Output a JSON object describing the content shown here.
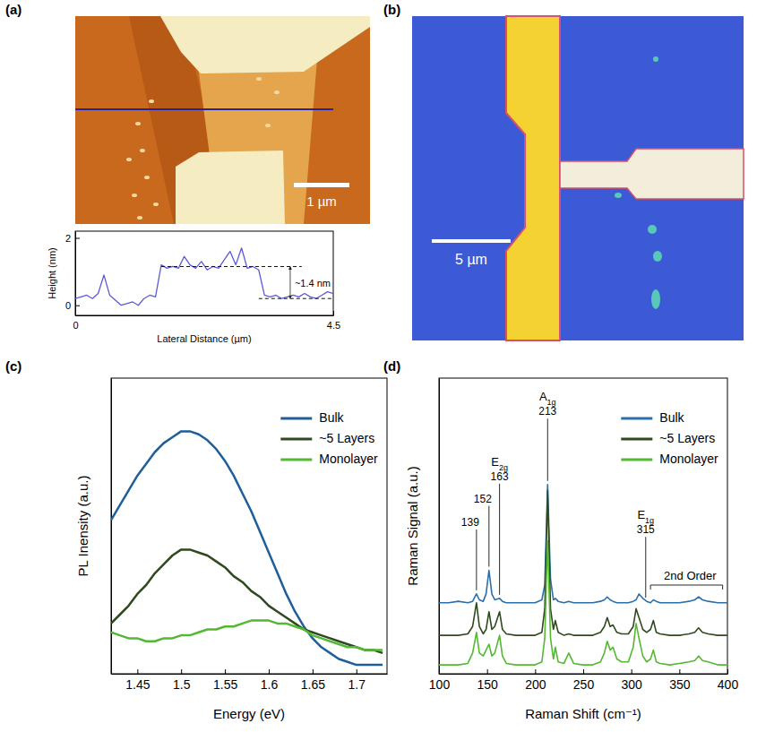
{
  "panel_labels": [
    "(a)",
    "(b)",
    "(c)",
    "(d)"
  ],
  "afm_image": {
    "scale_bar": "1 µm"
  },
  "optical_image": {
    "scale_bar": "5 µm"
  },
  "chart_data": [
    {
      "type": "line",
      "x_label": "Lateral Distance (µm)",
      "y_label": "Height (nm)",
      "x": [
        0,
        0.1,
        0.2,
        0.3,
        0.4,
        0.5,
        0.6,
        0.7,
        0.8,
        0.9,
        1,
        1.1,
        1.2,
        1.3,
        1.4,
        1.5,
        1.6,
        1.7,
        1.8,
        1.9,
        2,
        2.1,
        2.2,
        2.3,
        2.4,
        2.5,
        2.6,
        2.7,
        2.8,
        2.9,
        3,
        3.1,
        3.2,
        3.3,
        3.4,
        3.5,
        3.6,
        3.7,
        3.8,
        3.9,
        4,
        4.1,
        4.2,
        4.3,
        4.4,
        4.5
      ],
      "values": [
        0.2,
        0.25,
        0.3,
        0.2,
        0.35,
        0.9,
        0.3,
        0.15,
        0,
        0.05,
        0.1,
        0,
        0.2,
        0.3,
        0.25,
        1.2,
        1.1,
        1.15,
        1.1,
        1.45,
        1.2,
        1.1,
        1.3,
        1.05,
        1.15,
        1.1,
        1.35,
        1.6,
        1.2,
        1.7,
        1.1,
        1.15,
        1.05,
        0.3,
        0.25,
        0.3,
        0.2,
        0.25,
        0.3,
        0.25,
        0.35,
        0.25,
        0.2,
        0.3,
        0.4,
        0.35
      ],
      "color": "#5b5bd6",
      "xlim": [
        0,
        4.5
      ],
      "xticks": [
        0,
        4.5
      ],
      "ylim": [
        -0.3,
        2.2
      ],
      "yticks": [
        0,
        2
      ],
      "reference_lines": [
        {
          "y": 1.15,
          "x": [
            1.5,
            3.95
          ]
        },
        {
          "y": 0.2,
          "x": [
            3.2,
            4.5
          ]
        }
      ],
      "annotation": "~1.4 nm"
    },
    {
      "type": "line",
      "x_label": "Energy (eV)",
      "y_label": "PL Inensity (a.u.)",
      "x": [
        1.42,
        1.43,
        1.44,
        1.45,
        1.46,
        1.47,
        1.48,
        1.49,
        1.5,
        1.51,
        1.52,
        1.53,
        1.54,
        1.55,
        1.56,
        1.57,
        1.58,
        1.59,
        1.6,
        1.61,
        1.62,
        1.63,
        1.64,
        1.65,
        1.66,
        1.67,
        1.68,
        1.69,
        1.7,
        1.71,
        1.72,
        1.73
      ],
      "series": [
        {
          "name": "Bulk",
          "color": "#1f5f99",
          "values": [
            0.52,
            0.57,
            0.62,
            0.67,
            0.71,
            0.75,
            0.78,
            0.8,
            0.82,
            0.82,
            0.81,
            0.79,
            0.76,
            0.72,
            0.67,
            0.61,
            0.55,
            0.48,
            0.41,
            0.34,
            0.27,
            0.21,
            0.16,
            0.12,
            0.09,
            0.07,
            0.05,
            0.04,
            0.03,
            0.03,
            0.03,
            0.03
          ]
        },
        {
          "name": "~5 Layers",
          "color": "#2f4a1f",
          "values": [
            0.17,
            0.2,
            0.23,
            0.27,
            0.3,
            0.34,
            0.37,
            0.4,
            0.42,
            0.42,
            0.41,
            0.4,
            0.38,
            0.36,
            0.33,
            0.31,
            0.28,
            0.26,
            0.23,
            0.21,
            0.19,
            0.17,
            0.15,
            0.14,
            0.13,
            0.12,
            0.11,
            0.1,
            0.09,
            0.08,
            0.08,
            0.07
          ]
        },
        {
          "name": "Monolayer",
          "color": "#55b833",
          "values": [
            0.14,
            0.13,
            0.12,
            0.12,
            0.11,
            0.11,
            0.12,
            0.12,
            0.13,
            0.13,
            0.14,
            0.15,
            0.15,
            0.16,
            0.16,
            0.17,
            0.18,
            0.18,
            0.18,
            0.17,
            0.17,
            0.16,
            0.15,
            0.13,
            0.12,
            0.11,
            0.1,
            0.09,
            0.09,
            0.08,
            0.08,
            0.08
          ]
        }
      ],
      "xlim": [
        1.42,
        1.735
      ],
      "xticks": [
        1.45,
        1.5,
        1.55,
        1.6,
        1.65,
        1.7
      ],
      "ylim": [
        0,
        1
      ],
      "tick_labels": "x",
      "legend": "top-right"
    },
    {
      "type": "line",
      "x_label": "Raman Shift (cm⁻¹)",
      "y_label": "Raman Signal (a.u.)",
      "x": [
        100,
        110,
        120,
        130,
        135,
        139,
        142,
        146,
        149,
        152,
        155,
        158,
        163,
        166,
        170,
        180,
        190,
        200,
        207,
        210,
        213,
        216,
        219,
        221,
        224,
        230,
        235,
        240,
        250,
        260,
        268,
        272,
        275,
        278,
        281,
        285,
        290,
        297,
        302,
        305,
        308,
        312,
        316,
        320,
        323,
        326,
        330,
        340,
        350,
        360,
        366,
        370,
        374,
        380,
        390,
        400
      ],
      "series": [
        {
          "name": "Bulk",
          "color": "#2c6fa8",
          "values": [
            0.24,
            0.24,
            0.245,
            0.24,
            0.245,
            0.27,
            0.25,
            0.245,
            0.27,
            0.35,
            0.27,
            0.25,
            0.255,
            0.245,
            0.24,
            0.24,
            0.24,
            0.24,
            0.25,
            0.3,
            0.64,
            0.32,
            0.25,
            0.255,
            0.245,
            0.24,
            0.245,
            0.24,
            0.24,
            0.24,
            0.245,
            0.25,
            0.26,
            0.25,
            0.245,
            0.24,
            0.24,
            0.24,
            0.245,
            0.25,
            0.27,
            0.255,
            0.245,
            0.24,
            0.25,
            0.245,
            0.24,
            0.24,
            0.24,
            0.245,
            0.25,
            0.26,
            0.25,
            0.245,
            0.24,
            0.24
          ]
        },
        {
          "name": "~5 Layers",
          "color": "#2f4a1f",
          "values": [
            0.13,
            0.13,
            0.13,
            0.135,
            0.16,
            0.24,
            0.16,
            0.135,
            0.15,
            0.21,
            0.15,
            0.16,
            0.21,
            0.15,
            0.135,
            0.13,
            0.13,
            0.13,
            0.14,
            0.22,
            0.62,
            0.22,
            0.15,
            0.18,
            0.14,
            0.13,
            0.135,
            0.13,
            0.13,
            0.13,
            0.14,
            0.16,
            0.19,
            0.16,
            0.165,
            0.14,
            0.135,
            0.135,
            0.16,
            0.22,
            0.19,
            0.15,
            0.14,
            0.15,
            0.18,
            0.14,
            0.135,
            0.13,
            0.13,
            0.135,
            0.14,
            0.155,
            0.14,
            0.135,
            0.13,
            0.13
          ]
        },
        {
          "name": "Monolayer",
          "color": "#55b833",
          "values": [
            0.03,
            0.03,
            0.03,
            0.035,
            0.07,
            0.14,
            0.07,
            0.06,
            0.08,
            0.1,
            0.06,
            0.07,
            0.13,
            0.06,
            0.035,
            0.03,
            0.03,
            0.03,
            0.04,
            0.12,
            0.45,
            0.12,
            0.05,
            0.09,
            0.04,
            0.035,
            0.07,
            0.035,
            0.03,
            0.03,
            0.04,
            0.07,
            0.11,
            0.08,
            0.09,
            0.05,
            0.04,
            0.04,
            0.09,
            0.17,
            0.12,
            0.06,
            0.04,
            0.05,
            0.08,
            0.04,
            0.035,
            0.03,
            0.035,
            0.04,
            0.045,
            0.06,
            0.045,
            0.04,
            0.03,
            0.03
          ]
        }
      ],
      "xlim": [
        100,
        400
      ],
      "xticks": [
        100,
        150,
        200,
        250,
        300,
        350,
        400
      ],
      "ylim": [
        0,
        1
      ],
      "tick_labels": "x",
      "legend": "top-right",
      "peaks": [
        {
          "value": 139
        },
        {
          "value": 152
        },
        {
          "value": 163,
          "mode": "E",
          "mode_sub": "2g"
        },
        {
          "value": 213,
          "mode": "A",
          "mode_sub": "1g"
        },
        {
          "value": 315,
          "mode": "E",
          "mode_sub": "1g"
        }
      ],
      "second_order": {
        "label": "2nd Order",
        "range": [
          320,
          395
        ]
      }
    }
  ]
}
